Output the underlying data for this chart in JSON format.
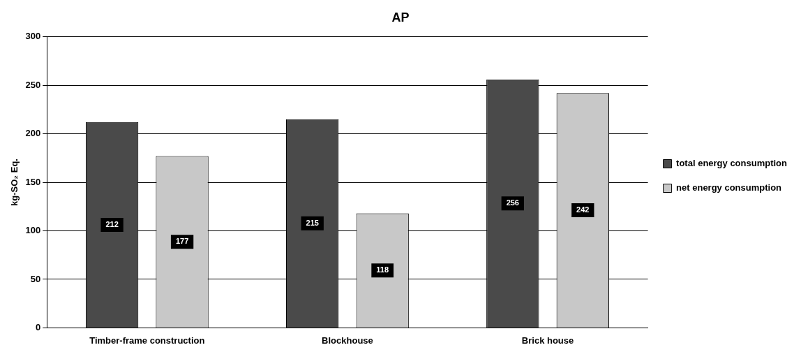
{
  "chart_data": {
    "type": "bar",
    "title": "AP",
    "ylabel": "kg-SO₂ Eq.",
    "categories": [
      "Timber-frame construction",
      "Blockhouse",
      "Brick house"
    ],
    "series": [
      {
        "name": "total energy consumption",
        "color": "#4a4a4a",
        "values": [
          212,
          215,
          256
        ]
      },
      {
        "name": "net energy consumption",
        "color": "#c8c8c8",
        "values": [
          177,
          118,
          242
        ]
      }
    ],
    "ylim": [
      0,
      300
    ],
    "yticks": [
      0,
      50,
      100,
      150,
      200,
      250,
      300
    ],
    "grid": "y",
    "legend": "right",
    "data_labels": true
  }
}
